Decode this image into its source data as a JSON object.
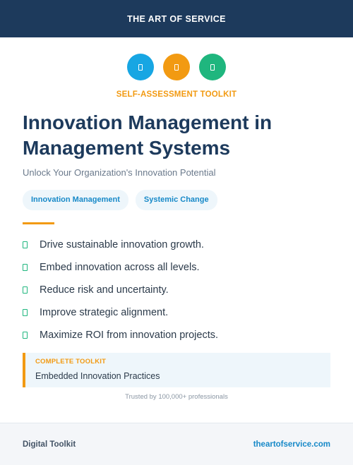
{
  "header": {
    "brand": "THE ART OF SERVICE"
  },
  "icons": [
    {
      "name": "document-icon",
      "color": "#17a6e3"
    },
    {
      "name": "document-icon",
      "color": "#f29a12"
    },
    {
      "name": "document-icon",
      "color": "#1fb67e"
    }
  ],
  "kicker": "SELF-ASSESSMENT TOOLKIT",
  "title": "Innovation Management in Management Systems",
  "subtitle": "Unlock Your Organization's Innovation Potential",
  "tags": [
    "Innovation Management",
    "Systemic Change"
  ],
  "features": [
    "Drive sustainable innovation growth.",
    "Embed innovation across all levels.",
    "Reduce risk and uncertainty.",
    "Improve strategic alignment.",
    "Maximize ROI from innovation projects."
  ],
  "callout": {
    "label": "COMPLETE TOOLKIT",
    "text": "Embedded Innovation Practices"
  },
  "trusted": "Trusted by 100,000+ professionals",
  "footer": {
    "left": "Digital Toolkit",
    "right": "theartofservice.com"
  },
  "colors": {
    "navy": "#1d3a5c",
    "orange": "#f29a12",
    "blue": "#17a6e3",
    "green": "#1fb67e"
  }
}
